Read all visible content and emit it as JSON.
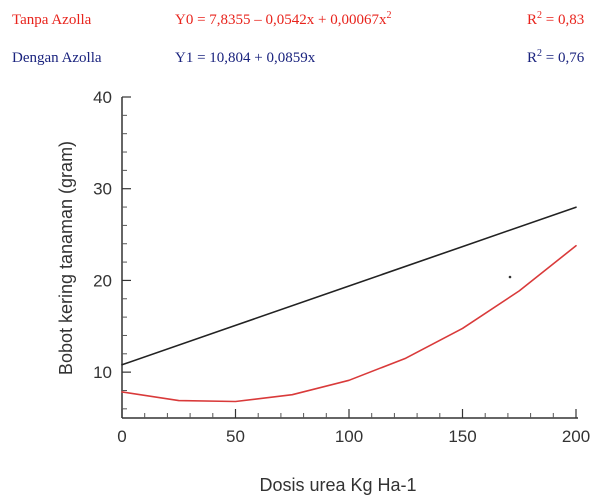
{
  "equations": [
    {
      "label": "Tanpa Azolla",
      "formula_base": "Y0 = 7,8355 – 0,0542x + 0,00067x",
      "formula_sup": "2",
      "r2_prefix": "R",
      "r2_sup": "2",
      "r2_value": " = 0,83",
      "color": "#e8231c"
    },
    {
      "label": "Dengan Azolla",
      "formula_base": "Y1 = 10,804 + 0,0859x",
      "formula_sup": "",
      "r2_prefix": "R",
      "r2_sup": "2",
      "r2_value": " = 0,76",
      "color": "#1a237e"
    }
  ],
  "chart_data": {
    "type": "line",
    "xlabel": "Dosis urea Kg Ha-1",
    "ylabel": "Bobot kering tanaman (gram)",
    "xlim": [
      0,
      200
    ],
    "ylim": [
      5,
      40
    ],
    "x_ticks": [
      0,
      50,
      100,
      150,
      200
    ],
    "y_ticks": [
      10,
      20,
      30,
      40
    ],
    "grid": false,
    "series": [
      {
        "name": "Dengan Azolla",
        "color": "#222222",
        "x": [
          0,
          50,
          100,
          150,
          200
        ],
        "y": [
          10.804,
          15.099,
          19.394,
          23.689,
          27.984
        ]
      },
      {
        "name": "Tanpa Azolla",
        "color": "#d93a3a",
        "x": [
          0,
          25,
          50,
          75,
          100,
          125,
          150,
          175,
          200
        ],
        "y": [
          7.84,
          6.9,
          6.8,
          7.54,
          9.11,
          11.52,
          14.77,
          18.86,
          23.78
        ]
      }
    ]
  }
}
